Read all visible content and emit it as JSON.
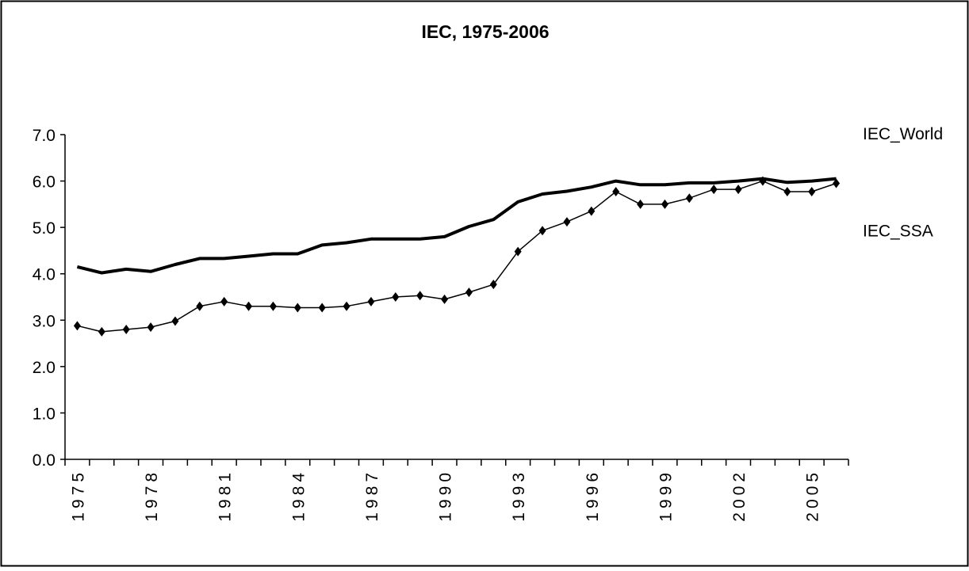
{
  "chart_data": {
    "type": "line",
    "title": "IEC, 1975-2006",
    "categories": [
      "1975",
      null,
      null,
      "1978",
      null,
      null,
      "1981",
      null,
      null,
      "1984",
      null,
      null,
      "1987",
      null,
      null,
      "1990",
      null,
      null,
      "1993",
      null,
      null,
      "1996",
      null,
      null,
      "1999",
      null,
      null,
      "2002",
      null,
      null,
      "2005",
      null
    ],
    "series": [
      {
        "name": "IEC_World",
        "color": "#000000",
        "line_width": 4,
        "marker": "none",
        "values": [
          4.15,
          4.02,
          4.1,
          4.05,
          4.2,
          4.33,
          4.33,
          4.38,
          4.43,
          4.43,
          4.62,
          4.67,
          4.75,
          4.75,
          4.75,
          4.8,
          5.02,
          5.17,
          5.55,
          5.72,
          5.78,
          5.87,
          6.0,
          5.92,
          5.92,
          5.96,
          5.96,
          6.0,
          6.05,
          5.97,
          6.0,
          6.05
        ]
      },
      {
        "name": "IEC_SSA",
        "color": "#000000",
        "line_width": 1.5,
        "marker": "diamond",
        "values": [
          2.88,
          2.75,
          2.8,
          2.85,
          2.98,
          3.3,
          3.4,
          3.3,
          3.3,
          3.27,
          3.27,
          3.3,
          3.4,
          3.5,
          3.53,
          3.45,
          3.6,
          3.77,
          4.48,
          4.93,
          5.12,
          5.35,
          5.77,
          5.5,
          5.5,
          5.63,
          5.82,
          5.82,
          6.0,
          5.77,
          5.77,
          5.95
        ]
      }
    ],
    "ylim": [
      0,
      7
    ],
    "yticks": [
      {
        "value": 0,
        "label": "0.0"
      },
      {
        "value": 1,
        "label": "1.0"
      },
      {
        "value": 2,
        "label": "2.0"
      },
      {
        "value": 3,
        "label": "3.0"
      },
      {
        "value": 4,
        "label": "4.0"
      },
      {
        "value": 5,
        "label": "5.0"
      },
      {
        "value": 6,
        "label": "6.0"
      },
      {
        "value": 7,
        "label": "7.0"
      }
    ],
    "grid": false
  }
}
